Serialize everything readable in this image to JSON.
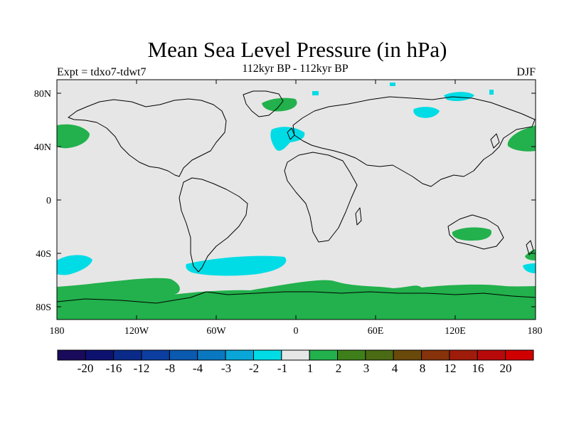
{
  "header": {
    "title": "Mean Sea Level Pressure (in hPa)",
    "subtitle": "112kyr BP - 112kyr BP",
    "left_label": "Expt = tdxo7-tdwt7",
    "right_label": "DJF"
  },
  "map": {
    "lat_ticks": [
      "80N",
      "40N",
      "0",
      "40S",
      "80S"
    ],
    "lon_ticks": [
      "180",
      "120W",
      "60W",
      "0",
      "60E",
      "120E",
      "180"
    ],
    "colors": {
      "land_sea_bg": "#e6e6e6",
      "positive_1_2": "#22b14c",
      "negative_2_1": "#00dce6",
      "coast": "#000000"
    }
  },
  "colorbar": {
    "labels": [
      "-20",
      "-16",
      "-12",
      "-8",
      "-4",
      "-3",
      "-2",
      "-1",
      "1",
      "2",
      "3",
      "4",
      "8",
      "12",
      "16",
      "20"
    ],
    "colors": [
      "#1a0a5c",
      "#0c1170",
      "#0a2a8a",
      "#0b3ea0",
      "#0a5ab0",
      "#0a78c0",
      "#0aa6d8",
      "#00dce6",
      "#e6e6e6",
      "#22b14c",
      "#3f7f1a",
      "#4a6a14",
      "#6a4a0a",
      "#86320a",
      "#a01c0a",
      "#b80a0a",
      "#d00000"
    ]
  }
}
